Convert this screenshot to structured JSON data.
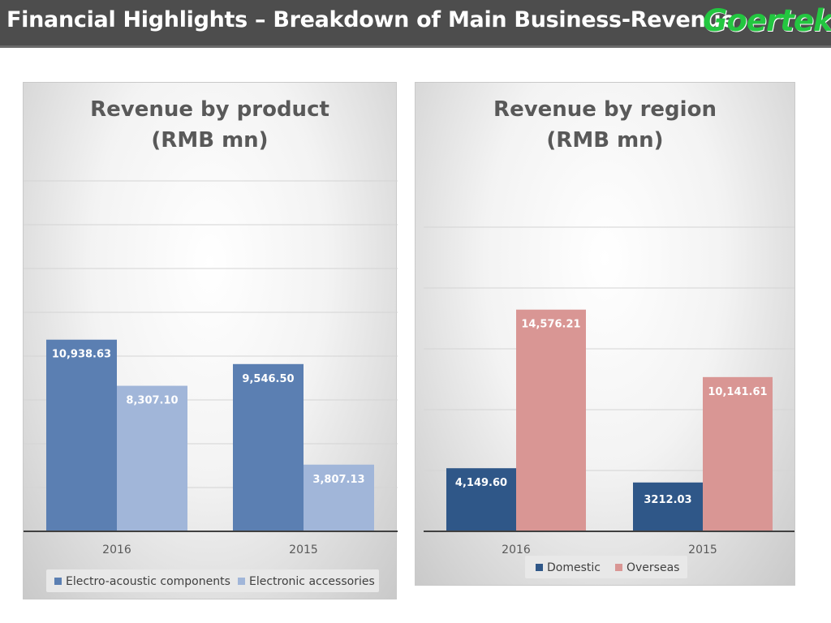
{
  "header": {
    "title": "Financial Highlights – Breakdown of Main Business-Revenue",
    "logo": "Goertek"
  },
  "colors": {
    "header_bg": "#4d4d4d",
    "electro": "#5b7fb2",
    "electronic": "#a1b6d9",
    "domestic": "#2f5788",
    "overseas": "#d99694",
    "logo": "#23c640"
  },
  "chart_data": [
    {
      "type": "bar",
      "title": "Revenue by product (RMB mn)",
      "title_lines": [
        "Revenue by product",
        "(RMB mn)"
      ],
      "categories": [
        "2016",
        "2015"
      ],
      "ylim": [
        0,
        20000
      ],
      "grid": true,
      "legend_position": "bottom",
      "series": [
        {
          "name": "Electro-acoustic components",
          "values": [
            10938.63,
            9546.5
          ],
          "labels": [
            "10,938.63",
            "9,546.50"
          ],
          "color": "#5b7fb2"
        },
        {
          "name": "Electronic accessories",
          "values": [
            8307.1,
            3807.13
          ],
          "labels": [
            "8,307.10",
            "3,807.13"
          ],
          "color": "#a1b6d9"
        }
      ]
    },
    {
      "type": "bar",
      "title": "Revenue by region (RMB mn)",
      "title_lines": [
        "Revenue by region",
        "(RMB mn)"
      ],
      "categories": [
        "2016",
        "2015"
      ],
      "ylim": [
        0,
        20000
      ],
      "grid": true,
      "legend_position": "bottom",
      "series": [
        {
          "name": "Domestic",
          "values": [
            4149.6,
            3212.03
          ],
          "labels": [
            "4,149.60",
            "3212.03"
          ],
          "color": "#2f5788"
        },
        {
          "name": "Overseas",
          "values": [
            14576.21,
            10141.61
          ],
          "labels": [
            "14,576.21",
            "10,141.61"
          ],
          "color": "#d99694"
        }
      ]
    }
  ]
}
